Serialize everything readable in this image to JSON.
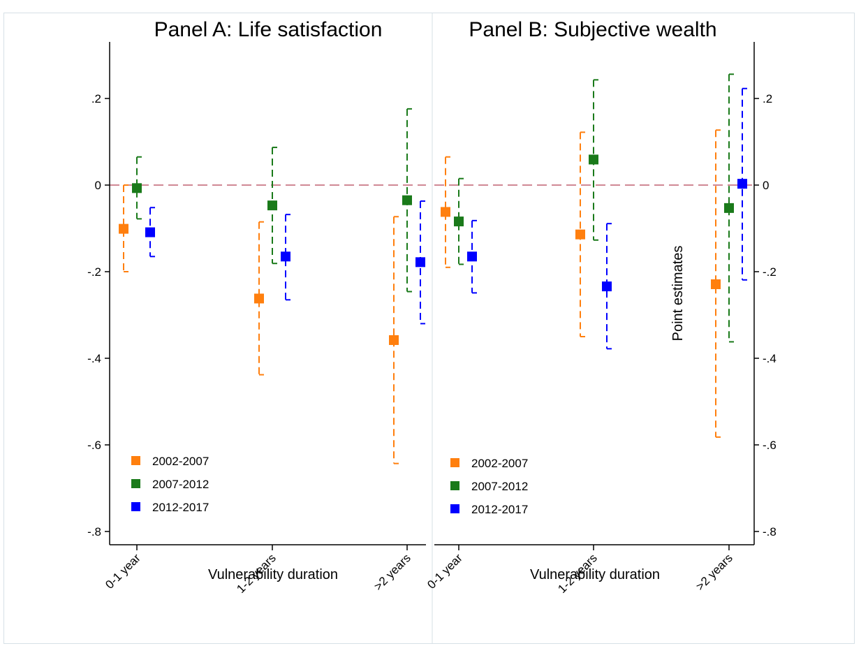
{
  "chart_data": {
    "type": "scatter",
    "subtype": "point-estimates-with-confidence-intervals",
    "panels": [
      {
        "title": "Panel A: Life satisfaction",
        "xlabel": "Vulnerability duration",
        "ylabel": "",
        "categories": [
          "0-1 year",
          "1-2 years",
          ">2 years"
        ],
        "ylim": [
          -0.8,
          0.3
        ],
        "yticks": [
          -0.8,
          -0.6,
          -0.4,
          -0.2,
          0,
          0.2
        ],
        "ytick_labels": [
          "-.8",
          "-.6",
          "-.4",
          "-.2",
          "0",
          ".2"
        ],
        "y_axis_side": "left",
        "reference_line": 0,
        "legend_position": "bottom-left",
        "series": [
          {
            "name": "2002-2007",
            "color": "#ff7f0e",
            "estimates": [
              -0.101,
              -0.262,
              -0.358
            ],
            "ci_low": [
              -0.2,
              -0.438,
              -0.643
            ],
            "ci_high": [
              0.0,
              -0.085,
              -0.073
            ]
          },
          {
            "name": "2007-2012",
            "color": "#1a7a1a",
            "estimates": [
              -0.007,
              -0.047,
              -0.035
            ],
            "ci_low": [
              -0.078,
              -0.181,
              -0.246
            ],
            "ci_high": [
              0.065,
              0.087,
              0.176
            ]
          },
          {
            "name": "2012-2017",
            "color": "#0000ff",
            "estimates": [
              -0.109,
              -0.165,
              -0.178
            ],
            "ci_low": [
              -0.165,
              -0.265,
              -0.32
            ],
            "ci_high": [
              -0.052,
              -0.068,
              -0.037
            ]
          }
        ]
      },
      {
        "title": "Panel B: Subjective wealth",
        "xlabel": "Vulnerability duration",
        "ylabel": "Point estimates",
        "categories": [
          "0-1 year",
          "1-2 years",
          ">2 years"
        ],
        "ylim": [
          -0.8,
          0.3
        ],
        "yticks": [
          -0.8,
          -0.6,
          -0.4,
          -0.2,
          0,
          0.2
        ],
        "ytick_labels": [
          "-.8",
          "-.6",
          "-.4",
          "-.2",
          "0",
          ".2"
        ],
        "y_axis_side": "right",
        "reference_line": 0,
        "legend_position": "bottom-left",
        "series": [
          {
            "name": "2002-2007",
            "color": "#ff7f0e",
            "estimates": [
              -0.062,
              -0.114,
              -0.229
            ],
            "ci_low": [
              -0.19,
              -0.35,
              -0.582
            ],
            "ci_high": [
              0.065,
              0.122,
              0.127
            ]
          },
          {
            "name": "2007-2012",
            "color": "#1a7a1a",
            "estimates": [
              -0.084,
              0.059,
              -0.053
            ],
            "ci_low": [
              -0.183,
              -0.127,
              -0.362
            ],
            "ci_high": [
              0.015,
              0.243,
              0.256
            ]
          },
          {
            "name": "2012-2017",
            "color": "#0000ff",
            "estimates": [
              -0.165,
              -0.234,
              0.003
            ],
            "ci_low": [
              -0.249,
              -0.378,
              -0.219
            ],
            "ci_high": [
              -0.082,
              -0.089,
              0.223
            ]
          }
        ]
      }
    ]
  }
}
